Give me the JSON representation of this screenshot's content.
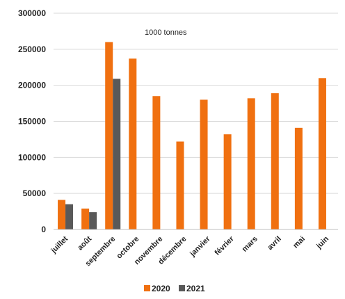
{
  "chart_data": {
    "type": "bar",
    "title": "",
    "xlabel": "",
    "ylabel": "",
    "annotation": "1000 tonnes",
    "categories": [
      "juillet",
      "août",
      "septembre",
      "octobre",
      "novembre",
      "décembre",
      "janvier",
      "février",
      "mars",
      "avril",
      "mai",
      "juin"
    ],
    "series": [
      {
        "name": "2020",
        "color": "#f07010",
        "values": [
          41000,
          29000,
          260000,
          237000,
          185000,
          122000,
          180000,
          132000,
          182000,
          189000,
          141000,
          210000
        ]
      },
      {
        "name": "2021",
        "color": "#595959",
        "values": [
          35000,
          24000,
          209000,
          null,
          null,
          null,
          null,
          null,
          null,
          null,
          null,
          null
        ]
      }
    ],
    "ylim": [
      0,
      300000
    ],
    "yticks": [
      0,
      50000,
      100000,
      150000,
      200000,
      250000,
      300000
    ],
    "ytick_labels": [
      "0",
      "50000",
      "100000",
      "150000",
      "200000",
      "250000",
      "300000"
    ],
    "grid": true,
    "legend_position": "bottom"
  }
}
